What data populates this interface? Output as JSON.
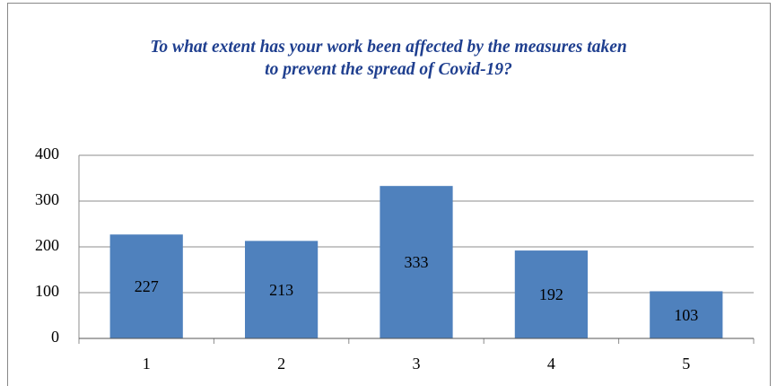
{
  "chart_data": {
    "type": "bar",
    "title": "To what extent has your work been affected by the measures taken to prevent the spread of Covid-19?",
    "categories": [
      "1",
      "2",
      "3",
      "4",
      "5"
    ],
    "values": [
      227,
      213,
      333,
      192,
      103
    ],
    "color": "#4f81bd",
    "ylim": [
      0,
      400
    ],
    "yticks": [
      0,
      100,
      200,
      300,
      400
    ],
    "grid": true
  }
}
